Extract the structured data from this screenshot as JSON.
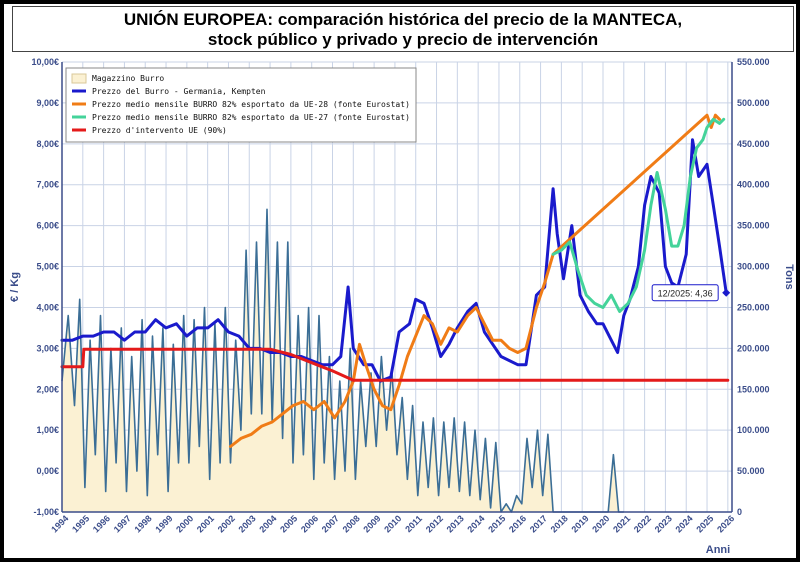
{
  "title": {
    "line1": "UNIÓN EUROPEA: comparación histórica del precio de la MANTECA,",
    "line2": "stock público y privado y precio de intervención"
  },
  "chart_data": {
    "type": "line",
    "title": "UNIÓN EUROPEA: comparación histórica del precio de la MANTECA, stock público y privado y precio de intervención",
    "xlabel": "Anni",
    "ylabel": "€ / Kg",
    "y2label": "Tons",
    "xlim": [
      1994,
      2026.2
    ],
    "ylim": [
      -1,
      10
    ],
    "y2lim": [
      0,
      550000
    ],
    "x_ticks": [
      "1994",
      "1995",
      "1996",
      "1997",
      "1998",
      "1999",
      "2000",
      "2001",
      "2002",
      "2003",
      "2004",
      "2005",
      "2006",
      "2007",
      "2008",
      "2009",
      "2010",
      "2011",
      "2012",
      "2013",
      "2014",
      "2015",
      "2016",
      "2017",
      "2018",
      "2019",
      "2020",
      "2021",
      "2022",
      "2023",
      "2024",
      "2025",
      "2026"
    ],
    "y_ticks": [
      "-1,00€",
      "0,00€",
      "1,00€",
      "2,00€",
      "3,00€",
      "4,00€",
      "5,00€",
      "6,00€",
      "7,00€",
      "8,00€",
      "9,00€",
      "10,00€"
    ],
    "y2_ticks": [
      "0",
      "50.000",
      "100.000",
      "150.000",
      "200.000",
      "250.000",
      "300.000",
      "350.000",
      "400.000",
      "450.000",
      "500.000",
      "550.000"
    ],
    "grid": true,
    "legend_position": "top-left",
    "annotation": {
      "label": "12/2025: 4,36",
      "x": 2025.92,
      "y": 4.36
    },
    "series": [
      {
        "name": "Magazzino Burro",
        "axis": "right",
        "kind": "area",
        "color": "#3b6e96",
        "fill": "#fbf1d3",
        "x": [
          1994.0,
          1994.3,
          1994.6,
          1994.85,
          1995.1,
          1995.35,
          1995.6,
          1995.85,
          1996.1,
          1996.35,
          1996.6,
          1996.85,
          1997.1,
          1997.35,
          1997.6,
          1997.85,
          1998.1,
          1998.35,
          1998.6,
          1998.85,
          1999.1,
          1999.35,
          1999.6,
          1999.85,
          2000.1,
          2000.35,
          2000.6,
          2000.85,
          2001.1,
          2001.35,
          2001.6,
          2001.85,
          2002.1,
          2002.35,
          2002.6,
          2002.85,
          2003.1,
          2003.35,
          2003.6,
          2003.85,
          2004.1,
          2004.35,
          2004.6,
          2004.85,
          2005.1,
          2005.35,
          2005.6,
          2005.85,
          2006.1,
          2006.35,
          2006.6,
          2006.85,
          2007.1,
          2007.35,
          2007.6,
          2007.85,
          2008.1,
          2008.35,
          2008.6,
          2008.85,
          2009.1,
          2009.35,
          2009.6,
          2009.85,
          2010.1,
          2010.35,
          2010.6,
          2010.85,
          2011.1,
          2011.35,
          2011.6,
          2011.85,
          2012.1,
          2012.35,
          2012.6,
          2012.85,
          2013.1,
          2013.35,
          2013.6,
          2013.85,
          2014.1,
          2014.35,
          2014.6,
          2014.85,
          2015.1,
          2015.35,
          2015.6,
          2015.85,
          2016.1,
          2016.35,
          2016.6,
          2016.85,
          2017.1,
          2017.35,
          2017.6,
          2020.0,
          2020.25,
          2020.5,
          2020.75,
          2021.0
        ],
        "values": [
          160000,
          240000,
          130000,
          260000,
          30000,
          210000,
          70000,
          240000,
          25000,
          200000,
          60000,
          225000,
          25000,
          190000,
          50000,
          235000,
          20000,
          215000,
          70000,
          225000,
          25000,
          205000,
          60000,
          240000,
          60000,
          235000,
          80000,
          250000,
          40000,
          230000,
          60000,
          250000,
          60000,
          210000,
          100000,
          320000,
          120000,
          330000,
          120000,
          370000,
          110000,
          330000,
          90000,
          330000,
          60000,
          240000,
          70000,
          250000,
          40000,
          240000,
          60000,
          190000,
          40000,
          160000,
          50000,
          200000,
          40000,
          160000,
          80000,
          170000,
          80000,
          190000,
          100000,
          175000,
          70000,
          140000,
          40000,
          130000,
          20000,
          110000,
          30000,
          115000,
          20000,
          110000,
          30000,
          115000,
          25000,
          110000,
          20000,
          100000,
          15000,
          90000,
          5000,
          85000,
          0,
          10000,
          0,
          20000,
          10000,
          90000,
          30000,
          100000,
          20000,
          95000,
          0,
          0,
          0,
          70000,
          0,
          0
        ]
      },
      {
        "name": "Prezzo del Burro - Germania, Kempten",
        "axis": "left",
        "color": "#1a1acc",
        "x": [
          1994.0,
          1994.5,
          1995.0,
          1995.5,
          1996.0,
          1996.5,
          1997.0,
          1997.5,
          1998.0,
          1998.5,
          1999.0,
          1999.5,
          2000.0,
          2000.5,
          2001.0,
          2001.5,
          2002.0,
          2002.5,
          2003.0,
          2003.5,
          2004.0,
          2004.5,
          2005.0,
          2005.5,
          2006.0,
          2006.5,
          2007.0,
          2007.4,
          2007.75,
          2008.0,
          2008.5,
          2008.9,
          2009.3,
          2009.8,
          2010.2,
          2010.7,
          2011.0,
          2011.4,
          2011.8,
          2012.2,
          2012.6,
          2013.0,
          2013.5,
          2013.9,
          2014.3,
          2014.7,
          2015.1,
          2015.5,
          2015.9,
          2016.3,
          2016.8,
          2017.2,
          2017.6,
          2017.8,
          2018.1,
          2018.5,
          2018.9,
          2019.3,
          2019.7,
          2020.0,
          2020.4,
          2020.7,
          2021.0,
          2021.3,
          2021.7,
          2022.0,
          2022.3,
          2022.7,
          2023.0,
          2023.3,
          2023.6,
          2024.0,
          2024.3,
          2024.6,
          2025.0,
          2025.3,
          2025.6,
          2025.92
        ],
        "values": [
          3.2,
          3.2,
          3.3,
          3.3,
          3.4,
          3.4,
          3.2,
          3.4,
          3.4,
          3.7,
          3.5,
          3.6,
          3.3,
          3.5,
          3.5,
          3.7,
          3.4,
          3.3,
          3.0,
          3.0,
          2.9,
          2.9,
          2.8,
          2.8,
          2.7,
          2.6,
          2.6,
          2.8,
          4.5,
          3.0,
          2.6,
          2.6,
          2.2,
          2.3,
          3.4,
          3.6,
          4.2,
          4.1,
          3.5,
          2.8,
          3.1,
          3.5,
          3.9,
          4.1,
          3.4,
          3.1,
          2.8,
          2.7,
          2.6,
          2.6,
          4.3,
          4.5,
          6.9,
          5.8,
          4.7,
          6.0,
          4.3,
          3.9,
          3.6,
          3.6,
          3.2,
          2.9,
          3.8,
          4.2,
          5.0,
          6.5,
          7.2,
          6.8,
          5.0,
          4.6,
          4.5,
          5.3,
          8.1,
          7.2,
          7.5,
          6.5,
          5.5,
          4.36
        ]
      },
      {
        "name": "Prezzo medio mensile BURRO 82% esportato da UE-28 (fonte Eurostat)",
        "axis": "left",
        "color": "#f07c16",
        "x": [
          2002.1,
          2002.6,
          2003.1,
          2003.6,
          2004.1,
          2004.6,
          2005.1,
          2005.6,
          2006.1,
          2006.6,
          2007.1,
          2007.6,
          2008.0,
          2008.3,
          2008.6,
          2009.0,
          2009.4,
          2009.8,
          2010.2,
          2010.6,
          2011.0,
          2011.4,
          2011.8,
          2012.2,
          2012.6,
          2013.0,
          2013.5,
          2013.9,
          2014.3,
          2014.7,
          2015.1,
          2015.5,
          2015.9,
          2016.3,
          2016.8,
          2017.2,
          2017.6,
          2025.0,
          2025.2,
          2025.4,
          2025.6
        ],
        "values": [
          0.6,
          0.8,
          0.9,
          1.1,
          1.2,
          1.4,
          1.6,
          1.7,
          1.5,
          1.7,
          1.3,
          1.7,
          2.2,
          3.1,
          2.6,
          2.0,
          1.6,
          1.5,
          2.1,
          2.8,
          3.3,
          3.8,
          3.6,
          3.1,
          3.5,
          3.4,
          3.8,
          4.0,
          3.6,
          3.2,
          3.2,
          3.0,
          2.9,
          3.0,
          4.0,
          4.6,
          5.3,
          8.7,
          8.4,
          8.7,
          8.6
        ]
      },
      {
        "name": "Prezzo medio mensile BURRO 82% esportato da UE-27 (fonte Eurostat)",
        "axis": "left",
        "color": "#44d39a",
        "x": [
          2017.6,
          2018.0,
          2018.4,
          2018.8,
          2019.2,
          2019.6,
          2020.0,
          2020.4,
          2020.8,
          2021.2,
          2021.6,
          2022.0,
          2022.3,
          2022.6,
          2023.0,
          2023.3,
          2023.6,
          2023.9,
          2024.2,
          2024.5,
          2024.8,
          2025.0,
          2025.3,
          2025.6,
          2025.8
        ],
        "values": [
          5.3,
          5.4,
          5.6,
          4.9,
          4.3,
          4.1,
          4.0,
          4.3,
          3.9,
          4.1,
          4.5,
          5.4,
          6.5,
          7.3,
          6.4,
          5.5,
          5.5,
          6.0,
          7.2,
          7.9,
          8.1,
          8.4,
          8.6,
          8.5,
          8.6
        ]
      },
      {
        "name": "Prezzo d'intervento UE (90%)",
        "axis": "left",
        "color": "#e41a1a",
        "x": [
          1994.0,
          1995.0,
          1995.05,
          2004.0,
          2005.0,
          2006.0,
          2006.5,
          2007.0,
          2008.0,
          2026.0
        ],
        "values": [
          2.55,
          2.55,
          2.98,
          2.98,
          2.85,
          2.65,
          2.55,
          2.45,
          2.22,
          2.22
        ]
      }
    ]
  }
}
